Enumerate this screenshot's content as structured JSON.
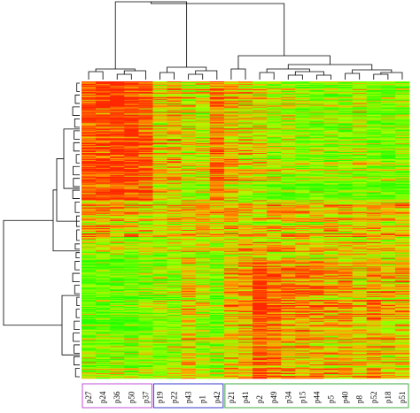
{
  "chart_data": {
    "type": "heatmap",
    "columns": [
      "p27",
      "p24",
      "p36",
      "p50",
      "p37",
      "p19",
      "p22",
      "p43",
      "p1",
      "p42",
      "p21",
      "p41",
      "p2",
      "p49",
      "p34",
      "p15",
      "p44",
      "p5",
      "p40",
      "p8",
      "p52",
      "p18",
      "p51"
    ],
    "column_groups": [
      {
        "members": [
          "p27",
          "p24",
          "p36",
          "p50",
          "p37"
        ],
        "color": "#c04fd6"
      },
      {
        "members": [
          "p19",
          "p22",
          "p43",
          "p1",
          "p42"
        ],
        "color": "#3a3acc"
      },
      {
        "members": [
          "p21",
          "p41",
          "p2",
          "p49",
          "p34",
          "p15",
          "p44",
          "p5",
          "p40",
          "p8",
          "p52",
          "p18",
          "p51"
        ],
        "color": "#3fae3f"
      }
    ],
    "row_clusters_top_to_bottom": [
      {
        "share": 0.32,
        "levels": [
          0.9,
          0.95,
          1.0,
          0.95,
          0.85,
          0.5,
          0.6,
          0.45,
          0.45,
          0.75,
          0.6,
          0.5,
          0.45,
          0.35,
          0.35,
          0.25,
          0.25,
          0.25,
          0.25,
          0.35,
          0.2,
          0.2,
          0.25
        ]
      },
      {
        "share": 0.08,
        "levels": [
          0.85,
          0.9,
          0.95,
          0.9,
          0.85,
          0.55,
          0.55,
          0.4,
          0.35,
          0.85,
          0.55,
          0.4,
          0.3,
          0.25,
          0.2,
          0.2,
          0.2,
          0.2,
          0.2,
          0.3,
          0.2,
          0.2,
          0.2
        ]
      },
      {
        "share": 0.14,
        "levels": [
          0.6,
          0.6,
          0.55,
          0.5,
          0.45,
          0.45,
          0.5,
          0.55,
          0.6,
          0.55,
          0.55,
          0.55,
          0.5,
          0.5,
          0.5,
          0.55,
          0.5,
          0.55,
          0.5,
          0.5,
          0.55,
          0.55,
          0.55
        ]
      },
      {
        "share": 0.06,
        "levels": [
          0.4,
          0.35,
          0.4,
          0.35,
          0.35,
          0.45,
          0.4,
          0.5,
          0.45,
          0.4,
          0.55,
          0.6,
          0.6,
          0.55,
          0.55,
          0.55,
          0.55,
          0.5,
          0.55,
          0.55,
          0.55,
          0.5,
          0.55
        ]
      },
      {
        "share": 0.24,
        "levels": [
          0.15,
          0.15,
          0.15,
          0.15,
          0.2,
          0.3,
          0.3,
          0.55,
          0.4,
          0.25,
          0.6,
          0.7,
          0.95,
          0.85,
          0.75,
          0.75,
          0.7,
          0.65,
          0.65,
          0.55,
          0.7,
          0.55,
          0.6
        ]
      },
      {
        "share": 0.16,
        "levels": [
          0.3,
          0.25,
          0.3,
          0.25,
          0.3,
          0.3,
          0.3,
          0.5,
          0.35,
          0.3,
          0.5,
          0.6,
          0.85,
          0.75,
          0.6,
          0.6,
          0.6,
          0.55,
          0.55,
          0.5,
          0.6,
          0.5,
          0.55
        ]
      }
    ],
    "color_scale": {
      "low": "#33ff00",
      "mid": "#7a7a00",
      "high": "#ff1a00"
    }
  }
}
